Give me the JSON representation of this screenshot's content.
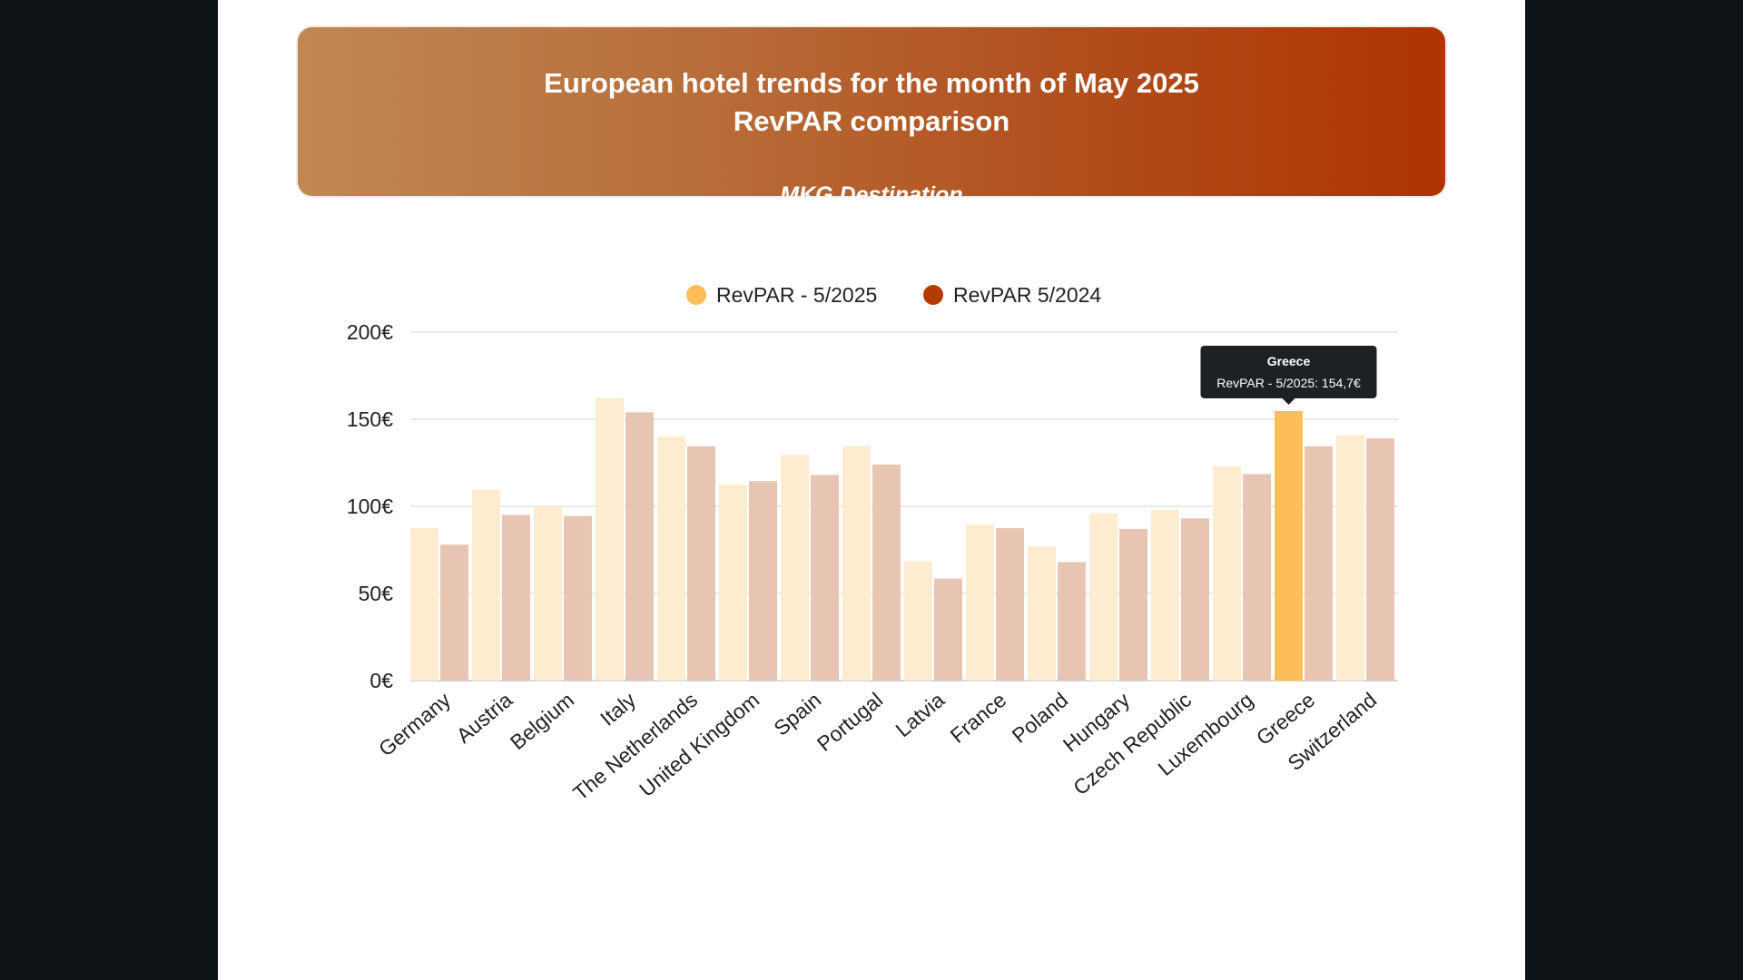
{
  "header": {
    "title_line1": "European hotel trends for the month of May 2025",
    "title_line2": "RevPAR comparison",
    "source": "MKG Destination"
  },
  "chart_data": {
    "type": "bar",
    "categories": [
      "Germany",
      "Austria",
      "Belgium",
      "Italy",
      "The Netherlands",
      "United Kingdom",
      "Spain",
      "Portugal",
      "Latvia",
      "France",
      "Poland",
      "Hungary",
      "Czech Republic",
      "Luxembourg",
      "Greece",
      "Switzerland"
    ],
    "series": [
      {
        "name": "RevPAR - 5/2025",
        "color": "#fdbd5b",
        "faded_color": "#feecd0",
        "values": [
          87.5,
          109.5,
          100,
          162,
          140,
          112.5,
          129.5,
          134.5,
          68.5,
          89.5,
          77,
          96,
          98,
          123,
          154.7,
          141
        ]
      },
      {
        "name": "RevPAR 5/2024",
        "color": "#b23b00",
        "faded_color": "#e8c5b3",
        "values": [
          78,
          95,
          94.5,
          154,
          134.5,
          114.5,
          118,
          124,
          58.5,
          87.5,
          68,
          87,
          93,
          118.5,
          134.5,
          139
        ]
      }
    ],
    "ylim": [
      0,
      200
    ],
    "yticks": [
      0,
      50,
      100,
      150,
      200
    ],
    "y_unit": "€",
    "grid": true,
    "legend_position": "top",
    "highlight": {
      "category_index": 14,
      "series_index": 0
    },
    "tooltip": {
      "title": "Greece",
      "text": "RevPAR - 5/2025: 154,7€"
    }
  }
}
